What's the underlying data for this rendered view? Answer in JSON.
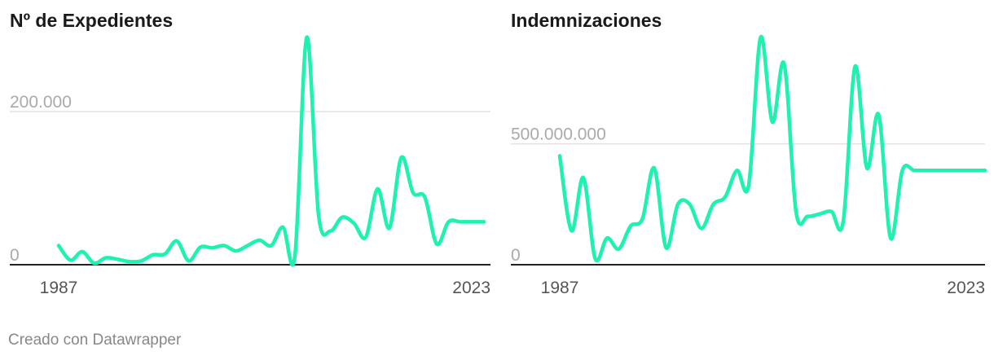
{
  "footer": "Creado con Datawrapper",
  "colors": {
    "line": "#1ef2b0",
    "grid": "#e2e2e2",
    "baseline": "#222222"
  },
  "chart_data": [
    {
      "type": "line",
      "title": "Nº de Expedientes",
      "x_labels": [
        "1987",
        "2023"
      ],
      "y_ticks": [
        {
          "value": 0,
          "label": "0"
        },
        {
          "value": 200000,
          "label": "200.000"
        }
      ],
      "ylim": [
        0,
        300000
      ],
      "x": [
        1987,
        1988,
        1989,
        1990,
        1991,
        1992,
        1993,
        1994,
        1995,
        1996,
        1997,
        1998,
        1999,
        2000,
        2001,
        2002,
        2003,
        2004,
        2005,
        2006,
        2007,
        2008,
        2009,
        2010,
        2011,
        2012,
        2013,
        2014,
        2015,
        2016,
        2017,
        2018,
        2019,
        2020,
        2021,
        2022,
        2023
      ],
      "values": [
        25000,
        6000,
        17000,
        2000,
        9000,
        7000,
        4000,
        5000,
        13000,
        14000,
        31000,
        5000,
        23000,
        22000,
        25000,
        18000,
        25000,
        32000,
        25000,
        49000,
        12000,
        297000,
        65000,
        44000,
        62000,
        54000,
        36000,
        99000,
        48000,
        140000,
        94000,
        88000,
        27000,
        56000,
        56000,
        56000,
        56000
      ]
    },
    {
      "type": "line",
      "title": "Indemnizaciones",
      "x_labels": [
        "1987",
        "2023"
      ],
      "y_ticks": [
        {
          "value": 0,
          "label": "0"
        },
        {
          "value": 500000000,
          "label": "500.000.000"
        }
      ],
      "ylim": [
        0,
        950000000
      ],
      "x": [
        1987,
        1988,
        1989,
        1990,
        1991,
        1992,
        1993,
        1994,
        1995,
        1996,
        1997,
        1998,
        1999,
        2000,
        2001,
        2002,
        2003,
        2004,
        2005,
        2006,
        2007,
        2008,
        2009,
        2010,
        2011,
        2012,
        2013,
        2014,
        2015,
        2016,
        2017,
        2018,
        2019,
        2020,
        2021,
        2022,
        2023
      ],
      "values": [
        450000000,
        140000000,
        360000000,
        25000000,
        110000000,
        65000000,
        160000000,
        190000000,
        400000000,
        70000000,
        250000000,
        250000000,
        150000000,
        250000000,
        280000000,
        390000000,
        330000000,
        940000000,
        590000000,
        830000000,
        220000000,
        200000000,
        210000000,
        220000000,
        180000000,
        820000000,
        400000000,
        620000000,
        110000000,
        390000000,
        390000000,
        390000000,
        390000000,
        390000000,
        390000000,
        390000000,
        390000000
      ]
    }
  ]
}
